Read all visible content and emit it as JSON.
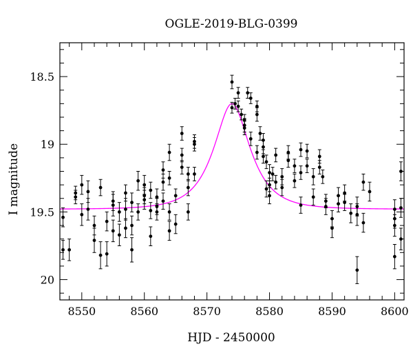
{
  "chart_data": {
    "type": "scatter",
    "title": "OGLE-2019-BLG-0399",
    "xlabel": "HJD - 2450000",
    "ylabel": "I magnitude",
    "xlim": [
      8546.5,
      8601.5
    ],
    "ylim": [
      20.15,
      18.25
    ],
    "y_inverted": true,
    "x_ticks": [
      8550,
      8560,
      8570,
      8580,
      8590,
      8600
    ],
    "x_tick_labels": [
      "8550",
      "8560",
      "8570",
      "8580",
      "8590",
      "8600"
    ],
    "y_ticks": [
      18.5,
      19,
      19.5,
      20
    ],
    "y_tick_labels": [
      "18.5",
      "19",
      "19.5",
      "20"
    ],
    "x_minor_step": 2,
    "y_minor_step": 0.1,
    "grid": false,
    "legend": "none",
    "colors": {
      "points": "#000000",
      "model": "#ff00ff"
    },
    "series": [
      {
        "type": "errorbar-scatter",
        "points": [
          [
            8547.0,
            19.54,
            0.07
          ],
          [
            8547.0,
            19.78,
            0.07
          ],
          [
            8548.0,
            19.78,
            0.08
          ],
          [
            8549.0,
            19.39,
            0.05
          ],
          [
            8549.0,
            19.36,
            0.05
          ],
          [
            8550.0,
            19.52,
            0.08
          ],
          [
            8550.0,
            19.3,
            0.07
          ],
          [
            8551.0,
            19.48,
            0.08
          ],
          [
            8551.0,
            19.35,
            0.08
          ],
          [
            8552.0,
            19.6,
            0.07
          ],
          [
            8552.0,
            19.71,
            0.09
          ],
          [
            8553.0,
            19.82,
            0.1
          ],
          [
            8553.0,
            19.32,
            0.06
          ],
          [
            8554.0,
            19.81,
            0.09
          ],
          [
            8554.0,
            19.57,
            0.07
          ],
          [
            8555.0,
            19.45,
            0.08
          ],
          [
            8555.0,
            19.42,
            0.07
          ],
          [
            8555.0,
            19.64,
            0.08
          ],
          [
            8556.0,
            19.67,
            0.08
          ],
          [
            8556.0,
            19.5,
            0.07
          ],
          [
            8557.0,
            19.62,
            0.07
          ],
          [
            8557.0,
            19.48,
            0.08
          ],
          [
            8557.0,
            19.36,
            0.06
          ],
          [
            8558.0,
            19.43,
            0.07
          ],
          [
            8558.0,
            19.78,
            0.09
          ],
          [
            8558.0,
            19.6,
            0.07
          ],
          [
            8559.0,
            19.5,
            0.06
          ],
          [
            8559.0,
            19.27,
            0.07
          ],
          [
            8560.0,
            19.38,
            0.06
          ],
          [
            8560.0,
            19.3,
            0.07
          ],
          [
            8560.0,
            19.41,
            0.07
          ],
          [
            8561.0,
            19.68,
            0.07
          ],
          [
            8561.0,
            19.49,
            0.06
          ],
          [
            8561.0,
            19.34,
            0.06
          ],
          [
            8562.0,
            19.39,
            0.06
          ],
          [
            8562.0,
            19.5,
            0.06
          ],
          [
            8562.0,
            19.46,
            0.06
          ],
          [
            8563.0,
            19.28,
            0.06
          ],
          [
            8563.0,
            19.19,
            0.06
          ],
          [
            8563.0,
            19.42,
            0.06
          ],
          [
            8564.0,
            19.06,
            0.06
          ],
          [
            8564.0,
            19.5,
            0.06
          ],
          [
            8564.0,
            19.64,
            0.07
          ],
          [
            8564.0,
            19.25,
            0.05
          ],
          [
            8565.0,
            19.38,
            0.05
          ],
          [
            8565.0,
            19.59,
            0.07
          ],
          [
            8566.0,
            18.92,
            0.05
          ],
          [
            8566.0,
            19.17,
            0.05
          ],
          [
            8566.0,
            19.08,
            0.05
          ],
          [
            8567.0,
            19.5,
            0.06
          ],
          [
            8567.0,
            19.32,
            0.06
          ],
          [
            8567.0,
            19.22,
            0.05
          ],
          [
            8568.0,
            19.0,
            0.05
          ],
          [
            8568.0,
            18.98,
            0.05
          ],
          [
            8568.0,
            19.22,
            0.05
          ],
          [
            8574.0,
            18.54,
            0.05
          ],
          [
            8574.0,
            18.73,
            0.04
          ],
          [
            8574.5,
            18.7,
            0.04
          ],
          [
            8575.0,
            18.62,
            0.04
          ],
          [
            8575.0,
            18.72,
            0.04
          ],
          [
            8575.5,
            18.78,
            0.04
          ],
          [
            8576.0,
            18.82,
            0.04
          ],
          [
            8576.0,
            18.86,
            0.05
          ],
          [
            8576.0,
            18.88,
            0.05
          ],
          [
            8576.5,
            18.62,
            0.04
          ],
          [
            8577.0,
            18.96,
            0.05
          ],
          [
            8577.0,
            18.66,
            0.04
          ],
          [
            8578.0,
            18.72,
            0.04
          ],
          [
            8578.0,
            18.78,
            0.05
          ],
          [
            8578.0,
            19.06,
            0.05
          ],
          [
            8578.5,
            18.92,
            0.05
          ],
          [
            8579.0,
            18.97,
            0.05
          ],
          [
            8579.0,
            19.02,
            0.05
          ],
          [
            8579.0,
            19.09,
            0.05
          ],
          [
            8579.5,
            19.13,
            0.05
          ],
          [
            8579.5,
            19.33,
            0.06
          ],
          [
            8580.0,
            19.21,
            0.06
          ],
          [
            8580.0,
            19.38,
            0.06
          ],
          [
            8580.0,
            19.3,
            0.05
          ],
          [
            8580.5,
            19.22,
            0.05
          ],
          [
            8581.0,
            19.08,
            0.05
          ],
          [
            8581.0,
            19.28,
            0.05
          ],
          [
            8582.0,
            19.24,
            0.06
          ],
          [
            8582.0,
            19.32,
            0.06
          ],
          [
            8583.0,
            19.06,
            0.05
          ],
          [
            8583.0,
            19.12,
            0.05
          ],
          [
            8584.0,
            19.16,
            0.05
          ],
          [
            8584.0,
            19.27,
            0.05
          ],
          [
            8585.0,
            19.04,
            0.05
          ],
          [
            8585.0,
            19.21,
            0.05
          ],
          [
            8585.0,
            19.45,
            0.06
          ],
          [
            8586.0,
            19.05,
            0.05
          ],
          [
            8586.0,
            19.16,
            0.05
          ],
          [
            8587.0,
            19.24,
            0.06
          ],
          [
            8587.0,
            19.39,
            0.06
          ],
          [
            8588.0,
            19.09,
            0.05
          ],
          [
            8588.0,
            19.17,
            0.05
          ],
          [
            8588.5,
            19.24,
            0.05
          ],
          [
            8589.0,
            19.46,
            0.06
          ],
          [
            8589.0,
            19.42,
            0.05
          ],
          [
            8590.0,
            19.62,
            0.07
          ],
          [
            8590.0,
            19.55,
            0.06
          ],
          [
            8591.0,
            19.38,
            0.06
          ],
          [
            8591.0,
            19.44,
            0.06
          ],
          [
            8592.0,
            19.36,
            0.06
          ],
          [
            8592.0,
            19.43,
            0.06
          ],
          [
            8593.0,
            19.51,
            0.07
          ],
          [
            8594.0,
            19.46,
            0.07
          ],
          [
            8594.0,
            19.52,
            0.08
          ],
          [
            8594.0,
            19.93,
            0.1
          ],
          [
            8595.0,
            19.28,
            0.06
          ],
          [
            8595.0,
            19.58,
            0.07
          ],
          [
            8596.0,
            19.35,
            0.07
          ],
          [
            8600.0,
            19.48,
            0.07
          ],
          [
            8600.0,
            19.55,
            0.07
          ],
          [
            8600.0,
            19.6,
            0.08
          ],
          [
            8600.0,
            19.83,
            0.09
          ],
          [
            8601.0,
            19.2,
            0.07
          ],
          [
            8601.0,
            19.47,
            0.07
          ],
          [
            8601.0,
            19.7,
            0.08
          ]
        ]
      },
      {
        "type": "line",
        "model": "pspl",
        "t0": 8574.0,
        "baseline": 19.48,
        "peak": 18.7,
        "width": 4.8,
        "x_range": [
          8546.5,
          8601.5
        ]
      }
    ]
  }
}
